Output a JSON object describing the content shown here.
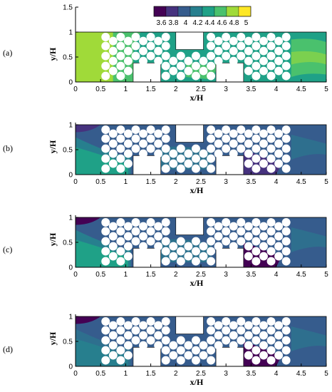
{
  "chart_data": {
    "type": "heatmap",
    "colorbar": {
      "levels": [
        3.5,
        3.6,
        3.7,
        3.8,
        3.9,
        4.0,
        4.1,
        4.2,
        4.3,
        4.4,
        4.5,
        4.6,
        4.7,
        4.8,
        4.9,
        5.0
      ],
      "tick_labels": [
        "3.6",
        "3.8",
        "4",
        "4.2",
        "4.4",
        "4.6",
        "4.8",
        "5"
      ],
      "colors": [
        "#440154",
        "#46327e",
        "#365c8d",
        "#277f8e",
        "#1fa187",
        "#4ac16d",
        "#a0da39",
        "#fde725"
      ]
    },
    "panels": [
      {
        "label": "(a)",
        "xlabel": "x/H",
        "ylabel": "y/H",
        "xlim": [
          0,
          5
        ],
        "ylim": [
          0,
          1.6
        ],
        "x_ticks": [
          "0",
          "0.5",
          "1",
          "1.5",
          "2",
          "2.5",
          "3",
          "3.5",
          "4",
          "4.5",
          "5"
        ],
        "y_ticks": [
          "0",
          "0.5",
          "1",
          "1.5"
        ],
        "has_colorbar": true,
        "fields": {
          "background": "#1fa187",
          "inlet": "#a0da39",
          "inlet_mid": "#4ac16d",
          "outlet": "#4ac16d",
          "wake": "#7bd04f"
        }
      },
      {
        "label": "(b)",
        "xlabel": "x/H",
        "ylabel": "y/H",
        "xlim": [
          0,
          5
        ],
        "ylim": [
          0,
          1.1
        ],
        "x_ticks": [
          "0",
          "0.5",
          "1",
          "1.5",
          "2",
          "2.5",
          "3",
          "3.5",
          "4",
          "4.5",
          "5"
        ],
        "y_ticks": [
          "0",
          "0.5",
          "1"
        ],
        "has_colorbar": false,
        "fields": {
          "background": "#365c8d",
          "inlet": "#1fa187",
          "inlet_mid": "#277f8e",
          "outlet": "#2e6f8e",
          "low": "#46327e",
          "wake": "#277f8e"
        }
      },
      {
        "label": "(c)",
        "xlabel": "x/H",
        "ylabel": "y/H",
        "xlim": [
          0,
          5
        ],
        "ylim": [
          0,
          1.1
        ],
        "x_ticks": [
          "0",
          "0.5",
          "1",
          "1.5",
          "2",
          "2.5",
          "3",
          "3.5",
          "4",
          "4.5",
          "5"
        ],
        "y_ticks": [
          "0",
          "0.5",
          "1"
        ],
        "has_colorbar": false,
        "fields": {
          "background": "#365c8d",
          "inlet": "#1fa187",
          "inlet_mid": "#277f8e",
          "outlet": "#2e6f8e",
          "low": "#440154",
          "wake": "#277f8e"
        }
      },
      {
        "label": "(d)",
        "xlabel": "x/H",
        "ylabel": "y/H",
        "xlim": [
          0,
          5
        ],
        "ylim": [
          0,
          1.1
        ],
        "x_ticks": [
          "0",
          "0.5",
          "1",
          "1.5",
          "2",
          "2.5",
          "3",
          "3.5",
          "4",
          "4.5",
          "5"
        ],
        "y_ticks": [
          "0",
          "0.5",
          "1"
        ],
        "has_colorbar": false,
        "fields": {
          "background": "#365c8d",
          "inlet": "#277f8e",
          "inlet_mid": "#2e6f8e",
          "outlet": "#2e6f8e",
          "low": "#440154",
          "wake": "#365c8d"
        }
      }
    ],
    "obstacles": {
      "rects": [
        {
          "x": 1.15,
          "y": 0.0,
          "w": 0.55,
          "h": 0.38
        },
        {
          "x": 2.0,
          "y": 0.65,
          "w": 0.55,
          "h": 0.35
        },
        {
          "x": 2.8,
          "y": 0.0,
          "w": 0.55,
          "h": 0.38
        }
      ],
      "circle_radius": 0.085,
      "circle_columns": [
        {
          "x": 0.6,
          "rows": [
            0.9,
            0.72,
            0.52,
            0.32,
            0.12
          ]
        },
        {
          "x": 0.75,
          "rows": [
            0.82,
            0.62,
            0.42,
            0.22
          ]
        },
        {
          "x": 0.9,
          "rows": [
            0.9,
            0.72,
            0.52,
            0.32,
            0.12
          ]
        },
        {
          "x": 1.05,
          "rows": [
            0.82,
            0.62,
            0.42,
            0.22
          ]
        },
        {
          "x": 1.2,
          "rows": [
            0.9,
            0.72,
            0.52
          ]
        },
        {
          "x": 1.35,
          "rows": [
            0.82,
            0.62,
            0.42
          ]
        },
        {
          "x": 1.5,
          "rows": [
            0.9,
            0.72,
            0.52
          ]
        },
        {
          "x": 1.65,
          "rows": [
            0.82,
            0.62,
            0.42
          ]
        },
        {
          "x": 1.8,
          "rows": [
            0.9,
            0.72,
            0.52,
            0.32,
            0.12
          ]
        },
        {
          "x": 1.95,
          "rows": [
            0.42,
            0.22
          ]
        },
        {
          "x": 2.1,
          "rows": [
            0.52,
            0.32,
            0.12
          ]
        },
        {
          "x": 2.25,
          "rows": [
            0.42,
            0.22
          ]
        },
        {
          "x": 2.4,
          "rows": [
            0.52,
            0.32,
            0.12
          ]
        },
        {
          "x": 2.55,
          "rows": [
            0.42,
            0.22
          ]
        },
        {
          "x": 2.7,
          "rows": [
            0.9,
            0.72,
            0.52,
            0.32,
            0.12
          ]
        },
        {
          "x": 2.85,
          "rows": [
            0.82,
            0.62,
            0.42
          ]
        },
        {
          "x": 3.0,
          "rows": [
            0.9,
            0.72,
            0.52
          ]
        },
        {
          "x": 3.15,
          "rows": [
            0.82,
            0.62,
            0.42
          ]
        },
        {
          "x": 3.3,
          "rows": [
            0.9,
            0.72,
            0.52
          ]
        },
        {
          "x": 3.45,
          "rows": [
            0.82,
            0.62,
            0.42,
            0.22
          ]
        },
        {
          "x": 3.6,
          "rows": [
            0.9,
            0.72,
            0.52,
            0.32,
            0.12
          ]
        },
        {
          "x": 3.75,
          "rows": [
            0.82,
            0.62,
            0.42,
            0.22
          ]
        },
        {
          "x": 3.9,
          "rows": [
            0.9,
            0.72,
            0.52,
            0.32,
            0.12
          ]
        },
        {
          "x": 4.05,
          "rows": [
            0.82,
            0.62,
            0.42,
            0.22
          ]
        },
        {
          "x": 4.2,
          "rows": [
            0.9,
            0.72,
            0.52,
            0.32,
            0.12
          ]
        }
      ]
    }
  }
}
